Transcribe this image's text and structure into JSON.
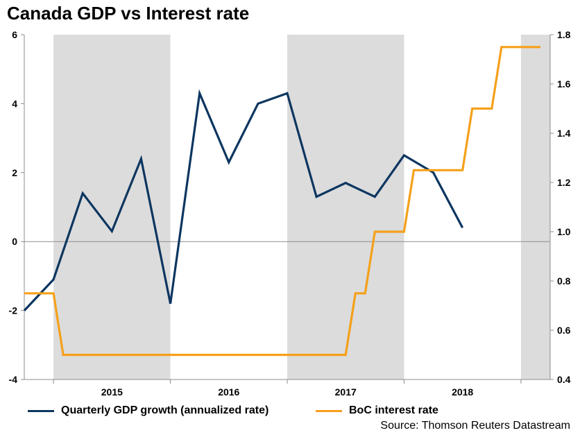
{
  "chart_data": {
    "type": "line",
    "title": "Canada GDP vs Interest rate",
    "x_labels": [
      "2015",
      "2016",
      "2017",
      "2018"
    ],
    "left_axis": {
      "ylim": [
        -4,
        6
      ],
      "ticks": [
        "6",
        "4",
        "2",
        "0",
        "-2",
        "-4"
      ]
    },
    "right_axis": {
      "ylim": [
        0.4,
        1.8
      ],
      "ticks": [
        "1.8",
        "1.6",
        "1.4",
        "1.2",
        "1.0",
        "0.8",
        "0.6",
        "0.4"
      ]
    },
    "shaded_periods": [
      "2015",
      "2017",
      "2019"
    ],
    "series": [
      {
        "name": "Quarterly GDP growth (annualized rate)",
        "axis": "left",
        "color": "#0d3660",
        "x": [
          "2014-10",
          "2015-01",
          "2015-04",
          "2015-07",
          "2015-10",
          "2016-01",
          "2016-04",
          "2016-07",
          "2016-10",
          "2017-01",
          "2017-04",
          "2017-07",
          "2017-10",
          "2018-01",
          "2018-04",
          "2018-07"
        ],
        "values": [
          -2.0,
          -1.1,
          1.4,
          0.3,
          2.4,
          -1.8,
          4.3,
          2.3,
          4.0,
          4.3,
          1.3,
          1.7,
          1.3,
          2.5,
          2.0,
          0.4
        ]
      },
      {
        "name": "BoC interest rate",
        "axis": "right",
        "color": "#f5a01a",
        "steps": [
          [
            "2014-10",
            0.75
          ],
          [
            "2015-01",
            0.75
          ],
          [
            "2015-02",
            0.5
          ],
          [
            "2017-07",
            0.5
          ],
          [
            "2017-08",
            0.75
          ],
          [
            "2017-09",
            0.75
          ],
          [
            "2017-10",
            1.0
          ],
          [
            "2018-01",
            1.0
          ],
          [
            "2018-02",
            1.25
          ],
          [
            "2018-07",
            1.25
          ],
          [
            "2018-08",
            1.5
          ],
          [
            "2018-10",
            1.5
          ],
          [
            "2018-11",
            1.75
          ],
          [
            "2019-03",
            1.75
          ]
        ]
      }
    ]
  },
  "legend": {
    "gdp_label": "Quarterly GDP growth (annualized rate)",
    "rate_label": "BoC interest rate"
  },
  "source": "Source: Thomson Reuters Datastream"
}
